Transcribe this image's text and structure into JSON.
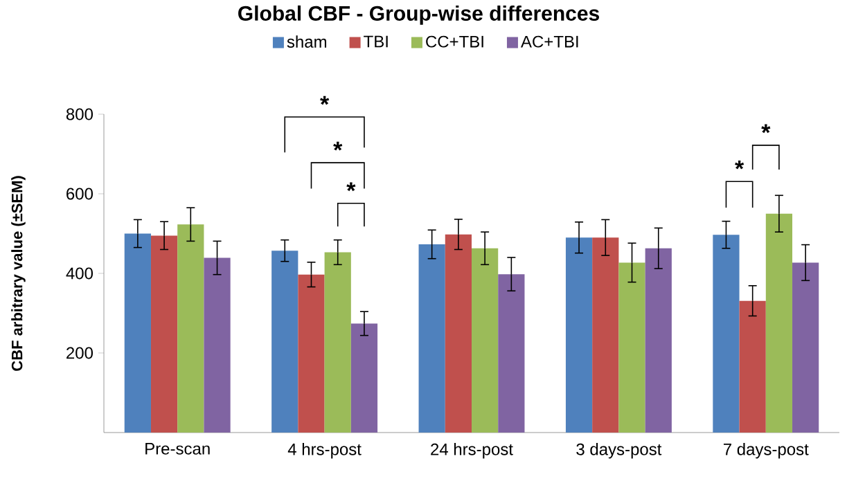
{
  "chart_data": {
    "type": "bar",
    "title": "Global CBF - Group-wise differences",
    "ylabel": "CBF arbitrary value (±SEM)",
    "categories": [
      "Pre-scan",
      "4 hrs-post",
      "24 hrs-post",
      "3 days-post",
      "7 days-post"
    ],
    "series": [
      {
        "name": "sham",
        "color": "#4f81bd",
        "values": [
          500,
          457,
          473,
          490,
          497
        ],
        "errors": [
          35,
          27,
          36,
          39,
          34
        ]
      },
      {
        "name": "TBI",
        "color": "#c0504d",
        "values": [
          495,
          397,
          498,
          490,
          331
        ],
        "errors": [
          35,
          31,
          38,
          45,
          38
        ]
      },
      {
        "name": "CC+TBI",
        "color": "#9bbb59",
        "values": [
          523,
          453,
          463,
          427,
          550
        ],
        "errors": [
          42,
          31,
          41,
          49,
          46
        ]
      },
      {
        "name": "AC+TBI",
        "color": "#8064a2",
        "values": [
          439,
          274,
          398,
          463,
          427
        ],
        "errors": [
          42,
          30,
          42,
          51,
          45
        ]
      }
    ],
    "ylim": [
      0,
      800
    ],
    "yticks": [
      200,
      400,
      600,
      800
    ],
    "legend": "top",
    "annotations": [
      "*",
      "*",
      "*",
      "*",
      "*"
    ]
  }
}
